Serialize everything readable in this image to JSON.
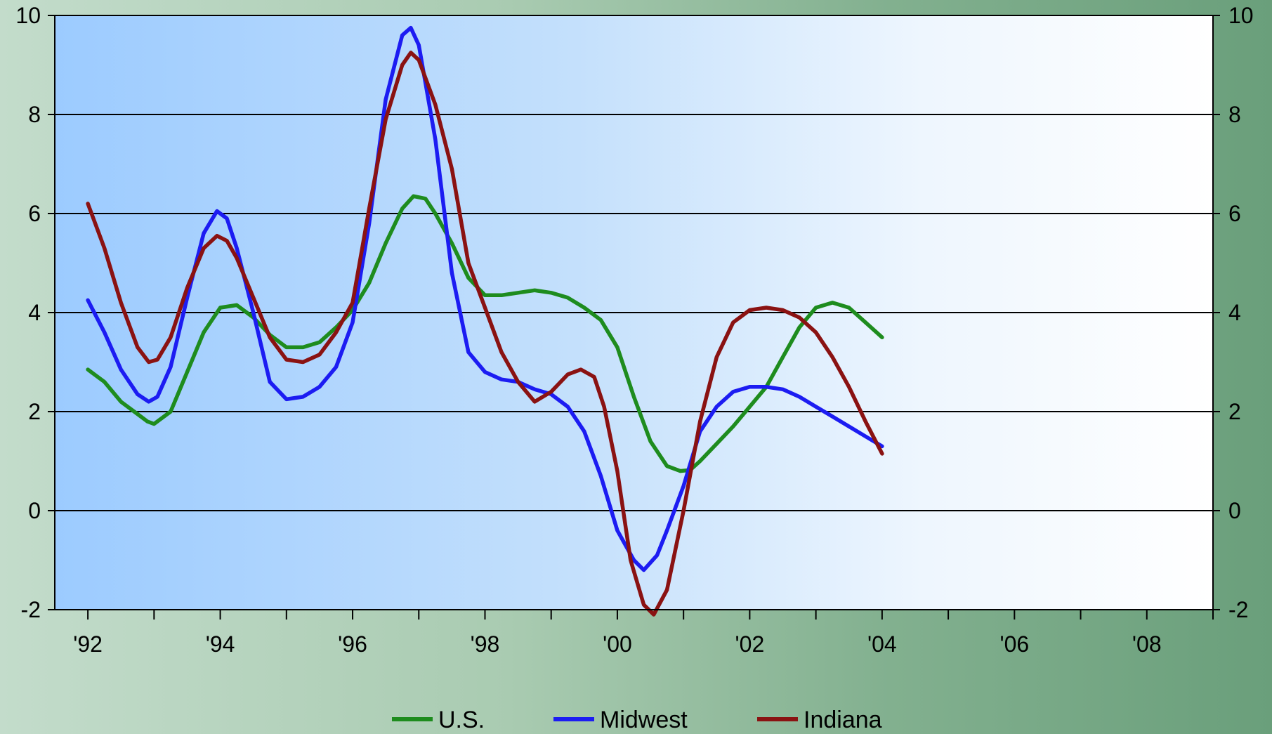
{
  "chart_data": {
    "type": "line",
    "title": "",
    "xlabel": "",
    "ylabel": "",
    "xlim": [
      1991.5,
      2009.0
    ],
    "ylim": [
      -2,
      10
    ],
    "y_ticks": [
      -2,
      0,
      2,
      4,
      6,
      8,
      10
    ],
    "y_tick_labels": [
      "-2",
      "0",
      "2",
      "4",
      "6",
      "8",
      "10"
    ],
    "x_ticks": [
      1992,
      1994,
      1996,
      1998,
      2000,
      2002,
      2004,
      2006,
      2008
    ],
    "x_tick_labels": [
      "'92",
      "'94",
      "'96",
      "'98",
      "'00",
      "'02",
      "'04",
      "'06",
      "'08"
    ],
    "grid": true,
    "legend": "bottom",
    "series": [
      {
        "name": "U.S.",
        "color": "#1e8c1e",
        "points": [
          [
            1992.0,
            2.85
          ],
          [
            1992.25,
            2.6
          ],
          [
            1992.5,
            2.2
          ],
          [
            1992.75,
            1.95
          ],
          [
            1992.9,
            1.8
          ],
          [
            1993.0,
            1.75
          ],
          [
            1993.25,
            2.0
          ],
          [
            1993.5,
            2.8
          ],
          [
            1993.75,
            3.6
          ],
          [
            1994.0,
            4.1
          ],
          [
            1994.25,
            4.15
          ],
          [
            1994.5,
            3.9
          ],
          [
            1994.75,
            3.55
          ],
          [
            1995.0,
            3.3
          ],
          [
            1995.25,
            3.3
          ],
          [
            1995.5,
            3.4
          ],
          [
            1995.75,
            3.7
          ],
          [
            1996.0,
            4.05
          ],
          [
            1996.25,
            4.6
          ],
          [
            1996.5,
            5.4
          ],
          [
            1996.75,
            6.1
          ],
          [
            1996.92,
            6.35
          ],
          [
            1997.1,
            6.3
          ],
          [
            1997.25,
            6.0
          ],
          [
            1997.5,
            5.4
          ],
          [
            1997.75,
            4.7
          ],
          [
            1998.0,
            4.35
          ],
          [
            1998.25,
            4.35
          ],
          [
            1998.5,
            4.4
          ],
          [
            1998.75,
            4.45
          ],
          [
            1999.0,
            4.4
          ],
          [
            1999.25,
            4.3
          ],
          [
            1999.5,
            4.1
          ],
          [
            1999.75,
            3.85
          ],
          [
            2000.0,
            3.3
          ],
          [
            2000.25,
            2.3
          ],
          [
            2000.5,
            1.4
          ],
          [
            2000.75,
            0.9
          ],
          [
            2000.95,
            0.8
          ],
          [
            2001.1,
            0.82
          ],
          [
            2001.25,
            1.0
          ],
          [
            2001.5,
            1.35
          ],
          [
            2001.75,
            1.7
          ],
          [
            2002.0,
            2.1
          ],
          [
            2002.25,
            2.5
          ],
          [
            2002.5,
            3.1
          ],
          [
            2002.75,
            3.7
          ],
          [
            2003.0,
            4.1
          ],
          [
            2003.25,
            4.2
          ],
          [
            2003.5,
            4.1
          ],
          [
            2003.75,
            3.8
          ],
          [
            2004.0,
            3.5
          ]
        ]
      },
      {
        "name": "Midwest",
        "color": "#1c1cf2",
        "points": [
          [
            1992.0,
            4.25
          ],
          [
            1992.25,
            3.6
          ],
          [
            1992.5,
            2.85
          ],
          [
            1992.75,
            2.35
          ],
          [
            1992.92,
            2.2
          ],
          [
            1993.05,
            2.3
          ],
          [
            1993.25,
            2.9
          ],
          [
            1993.5,
            4.3
          ],
          [
            1993.75,
            5.6
          ],
          [
            1993.95,
            6.05
          ],
          [
            1994.1,
            5.9
          ],
          [
            1994.25,
            5.3
          ],
          [
            1994.5,
            4.0
          ],
          [
            1994.75,
            2.6
          ],
          [
            1995.0,
            2.25
          ],
          [
            1995.25,
            2.3
          ],
          [
            1995.5,
            2.5
          ],
          [
            1995.75,
            2.9
          ],
          [
            1996.0,
            3.8
          ],
          [
            1996.25,
            5.8
          ],
          [
            1996.5,
            8.3
          ],
          [
            1996.75,
            9.6
          ],
          [
            1996.88,
            9.75
          ],
          [
            1997.0,
            9.4
          ],
          [
            1997.25,
            7.5
          ],
          [
            1997.5,
            4.8
          ],
          [
            1997.75,
            3.2
          ],
          [
            1998.0,
            2.8
          ],
          [
            1998.25,
            2.65
          ],
          [
            1998.5,
            2.6
          ],
          [
            1998.75,
            2.45
          ],
          [
            1999.0,
            2.35
          ],
          [
            1999.25,
            2.1
          ],
          [
            1999.5,
            1.6
          ],
          [
            1999.75,
            0.7
          ],
          [
            2000.0,
            -0.4
          ],
          [
            2000.25,
            -1.0
          ],
          [
            2000.4,
            -1.2
          ],
          [
            2000.6,
            -0.9
          ],
          [
            2000.75,
            -0.4
          ],
          [
            2001.0,
            0.5
          ],
          [
            2001.25,
            1.6
          ],
          [
            2001.5,
            2.1
          ],
          [
            2001.75,
            2.4
          ],
          [
            2002.0,
            2.5
          ],
          [
            2002.25,
            2.5
          ],
          [
            2002.5,
            2.45
          ],
          [
            2002.75,
            2.3
          ],
          [
            2003.0,
            2.1
          ],
          [
            2003.25,
            1.9
          ],
          [
            2003.5,
            1.7
          ],
          [
            2003.75,
            1.5
          ],
          [
            2004.0,
            1.3
          ]
        ]
      },
      {
        "name": "Indiana",
        "color": "#8a1212",
        "points": [
          [
            1992.0,
            6.2
          ],
          [
            1992.25,
            5.3
          ],
          [
            1992.5,
            4.2
          ],
          [
            1992.75,
            3.3
          ],
          [
            1992.92,
            3.0
          ],
          [
            1993.05,
            3.05
          ],
          [
            1993.25,
            3.5
          ],
          [
            1993.5,
            4.5
          ],
          [
            1993.75,
            5.3
          ],
          [
            1993.95,
            5.55
          ],
          [
            1994.1,
            5.45
          ],
          [
            1994.25,
            5.1
          ],
          [
            1994.5,
            4.3
          ],
          [
            1994.75,
            3.5
          ],
          [
            1995.0,
            3.05
          ],
          [
            1995.25,
            3.0
          ],
          [
            1995.5,
            3.15
          ],
          [
            1995.75,
            3.6
          ],
          [
            1996.0,
            4.2
          ],
          [
            1996.25,
            6.1
          ],
          [
            1996.5,
            7.9
          ],
          [
            1996.75,
            9.0
          ],
          [
            1996.88,
            9.25
          ],
          [
            1997.0,
            9.1
          ],
          [
            1997.25,
            8.2
          ],
          [
            1997.5,
            6.9
          ],
          [
            1997.75,
            5.0
          ],
          [
            1998.0,
            4.1
          ],
          [
            1998.25,
            3.2
          ],
          [
            1998.5,
            2.6
          ],
          [
            1998.75,
            2.2
          ],
          [
            1999.0,
            2.4
          ],
          [
            1999.25,
            2.75
          ],
          [
            1999.45,
            2.85
          ],
          [
            1999.65,
            2.7
          ],
          [
            1999.8,
            2.1
          ],
          [
            2000.0,
            0.8
          ],
          [
            2000.2,
            -1.0
          ],
          [
            2000.4,
            -1.9
          ],
          [
            2000.55,
            -2.1
          ],
          [
            2000.75,
            -1.6
          ],
          [
            2001.0,
            0.0
          ],
          [
            2001.25,
            1.8
          ],
          [
            2001.5,
            3.1
          ],
          [
            2001.75,
            3.8
          ],
          [
            2002.0,
            4.05
          ],
          [
            2002.25,
            4.1
          ],
          [
            2002.5,
            4.05
          ],
          [
            2002.75,
            3.9
          ],
          [
            2003.0,
            3.6
          ],
          [
            2003.25,
            3.1
          ],
          [
            2003.5,
            2.5
          ],
          [
            2003.75,
            1.8
          ],
          [
            2004.0,
            1.15
          ]
        ]
      }
    ]
  }
}
